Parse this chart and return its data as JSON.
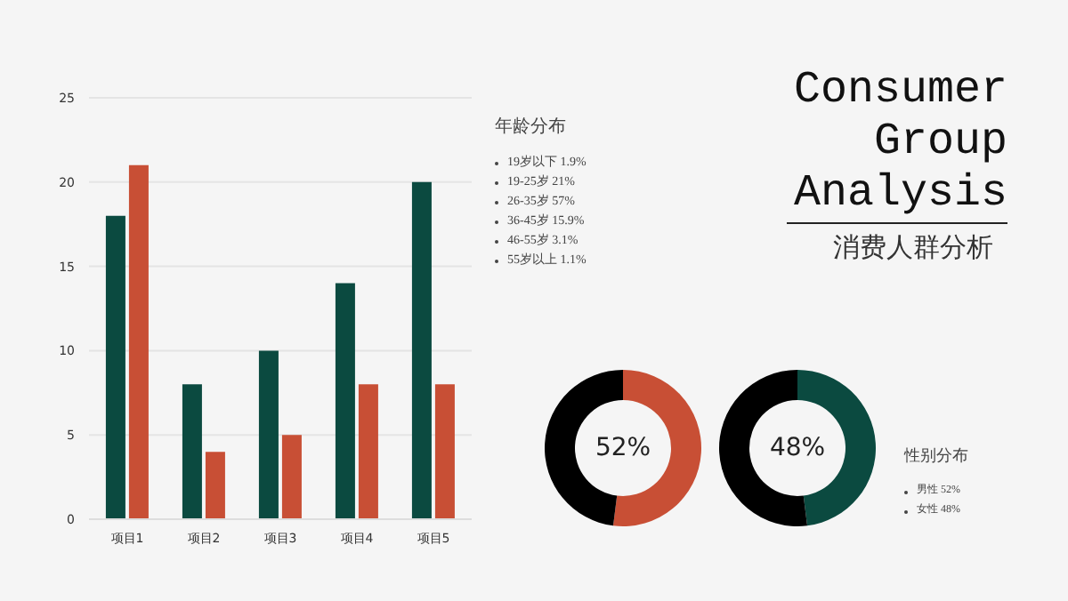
{
  "chart_data": [
    {
      "type": "bar",
      "categories": [
        "项目1",
        "项目2",
        "项目3",
        "项目4",
        "项目5"
      ],
      "series": [
        {
          "color": "#0b4a40",
          "values": [
            18,
            8,
            10,
            14,
            20
          ]
        },
        {
          "color": "#c84f35",
          "values": [
            21,
            4,
            5,
            8,
            8
          ]
        }
      ],
      "ylim": [
        0,
        25
      ],
      "yticks": [
        0,
        5,
        10,
        15,
        20,
        25
      ],
      "grid": "y",
      "legend": false
    },
    {
      "type": "donut",
      "categories": [
        null,
        null
      ],
      "values": [
        52,
        48
      ],
      "colors": [
        "#c84f35",
        "#000000"
      ],
      "annotations": [
        "52%"
      ]
    },
    {
      "type": "donut",
      "categories": [
        null,
        null
      ],
      "values": [
        48,
        52
      ],
      "colors": [
        "#0b4a40",
        "#000000"
      ],
      "annotations": [
        "48%"
      ]
    },
    {
      "type": "other",
      "title": "Consumer Group Analysis",
      "subtitle": "消费人群分析"
    },
    {
      "type": "other",
      "title": "年龄分布",
      "annotations": [
        "19岁以下 1.9%",
        "19-25岁 21%",
        "26-35岁 57%",
        "36-45岁 15.9%",
        "46-55岁 3.1%",
        "55岁以上 1.1%"
      ]
    },
    {
      "type": "other",
      "title": "性别分布",
      "annotations": [
        "男性 52%",
        "女性 48%"
      ]
    }
  ]
}
